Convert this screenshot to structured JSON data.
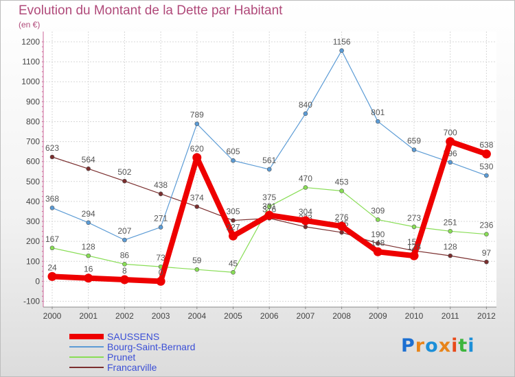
{
  "title": "Evolution du Montant de la Dette par Habitant",
  "subtitle": "(en €)",
  "logo": {
    "letters": [
      "P",
      "r",
      "o",
      "x",
      "i",
      "t",
      "i"
    ]
  },
  "chart_data": {
    "type": "line",
    "title": "Evolution du Montant de la Dette par Habitant",
    "ylabel": "(en €)",
    "xlabel": "",
    "ylim": [
      -100,
      1200
    ],
    "yticks": [
      "-100",
      "0",
      "100",
      "200",
      "300",
      "400",
      "500",
      "600",
      "700",
      "800",
      "900",
      "1000",
      "1100",
      "1200"
    ],
    "categories": [
      "2000",
      "2001",
      "2002",
      "2003",
      "2004",
      "2005",
      "2006",
      "2007",
      "2008",
      "2009",
      "2010",
      "2011",
      "2012"
    ],
    "series": [
      {
        "name": "Francarville",
        "color": "#7a2e2e",
        "values": [
          623,
          564,
          502,
          438,
          374,
          305,
          316,
          273,
          245,
          190,
          153,
          128,
          97
        ]
      },
      {
        "name": "Prunet",
        "color": "#88dd55",
        "values": [
          167,
          128,
          86,
          73,
          59,
          45,
          375,
          470,
          453,
          309,
          273,
          251,
          236
        ]
      },
      {
        "name": "Bourg-Saint-Bernard",
        "color": "#5b9bd5",
        "values": [
          368,
          294,
          207,
          271,
          789,
          605,
          561,
          840,
          1156,
          801,
          659,
          596,
          530
        ]
      },
      {
        "name": "SAUSSENS",
        "color": "#ee0000",
        "values": [
          24,
          16,
          8,
          0,
          620,
          227,
          331,
          304,
          276,
          148,
          128,
          700,
          638
        ]
      }
    ],
    "legend_order": [
      "SAUSSENS",
      "Bourg-Saint-Bernard",
      "Prunet",
      "Francarville"
    ],
    "legend_position": "bottom-left",
    "grid": true
  }
}
